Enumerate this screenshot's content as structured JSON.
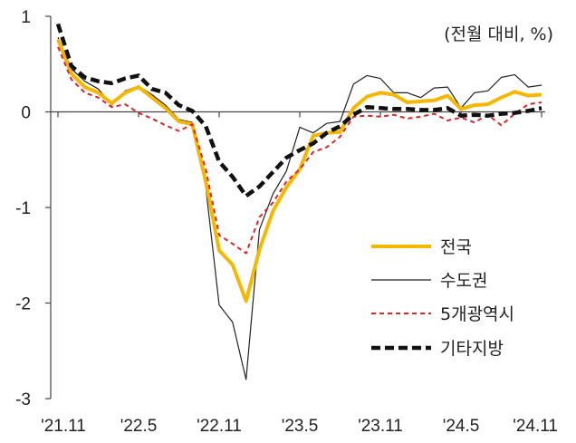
{
  "chart_data": {
    "type": "line",
    "unit_label": "(전월 대비, %)",
    "ylim": [
      -3,
      1
    ],
    "yticks": [
      1,
      0,
      -1,
      -2,
      -3
    ],
    "ytick_labels": [
      "1",
      "0",
      "-1",
      "-2",
      "-3"
    ],
    "x_count": 37,
    "xtick_labels": [
      {
        "index": 0,
        "label": "'21.11"
      },
      {
        "index": 6,
        "label": "'22.5"
      },
      {
        "index": 12,
        "label": "'22.11"
      },
      {
        "index": 18,
        "label": "'23.5"
      },
      {
        "index": 24,
        "label": "'23.11"
      },
      {
        "index": 30,
        "label": "'24.5"
      },
      {
        "index": 36,
        "label": "'24.11"
      }
    ],
    "legend_position": "bottom-right",
    "grid": false,
    "series": [
      {
        "name": "전국",
        "color": "#F5B800",
        "style": "solid-thick",
        "values": [
          0.76,
          0.4,
          0.26,
          0.2,
          0.09,
          0.2,
          0.26,
          0.15,
          0.04,
          -0.1,
          -0.13,
          -0.73,
          -1.45,
          -1.6,
          -1.98,
          -1.44,
          -1.04,
          -0.79,
          -0.6,
          -0.25,
          -0.22,
          -0.21,
          0.04,
          0.16,
          0.2,
          0.18,
          0.1,
          0.11,
          0.12,
          0.17,
          0.03,
          0.07,
          0.08,
          0.15,
          0.21,
          0.17,
          0.18
        ]
      },
      {
        "name": "수도권",
        "color": "#222222",
        "style": "solid-thin",
        "values": [
          0.78,
          0.45,
          0.32,
          0.24,
          0.07,
          0.22,
          0.27,
          0.18,
          0.07,
          -0.08,
          -0.11,
          -0.79,
          -2.02,
          -2.2,
          -2.8,
          -1.23,
          -0.86,
          -0.62,
          -0.16,
          -0.22,
          -0.12,
          -0.1,
          0.29,
          0.38,
          0.35,
          0.2,
          0.2,
          0.15,
          0.25,
          0.26,
          0.04,
          0.2,
          0.22,
          0.36,
          0.39,
          0.26,
          0.28
        ]
      },
      {
        "name": "5개광역시",
        "color": "#D9262B",
        "style": "dashed-thin",
        "values": [
          0.68,
          0.34,
          0.2,
          0.15,
          0.05,
          0.08,
          -0.01,
          -0.07,
          -0.14,
          -0.2,
          -0.13,
          -0.6,
          -1.29,
          -1.38,
          -1.48,
          -1.1,
          -0.95,
          -0.73,
          -0.6,
          -0.42,
          -0.37,
          -0.26,
          -0.05,
          -0.04,
          -0.05,
          -0.03,
          -0.07,
          -0.05,
          -0.02,
          -0.09,
          -0.06,
          -0.11,
          -0.03,
          -0.14,
          -0.02,
          0.08,
          0.1
        ]
      },
      {
        "name": "기타지방",
        "color": "#111111",
        "style": "dashed-thick",
        "values": [
          0.92,
          0.48,
          0.36,
          0.32,
          0.3,
          0.35,
          0.38,
          0.24,
          0.2,
          0.07,
          0.01,
          -0.15,
          -0.52,
          -0.68,
          -0.88,
          -0.78,
          -0.63,
          -0.48,
          -0.4,
          -0.33,
          -0.22,
          -0.15,
          -0.03,
          0.05,
          0.04,
          0.03,
          0.03,
          0.02,
          0.02,
          0.04,
          -0.04,
          -0.03,
          -0.04,
          -0.02,
          -0.01,
          0.01,
          0.04
        ]
      }
    ]
  }
}
